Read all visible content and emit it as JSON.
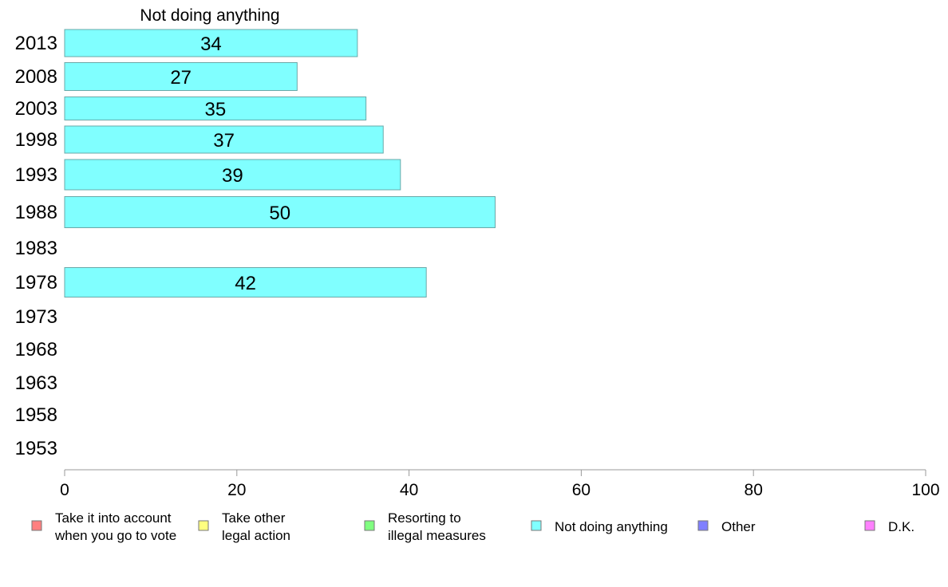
{
  "chart_data": {
    "type": "bar",
    "orientation": "horizontal",
    "panel_title": "Not doing anything",
    "categories": [
      "2013",
      "2008",
      "2003",
      "1998",
      "1993",
      "1988",
      "1983",
      "1978",
      "1973",
      "1968",
      "1963",
      "1958",
      "1953"
    ],
    "values": [
      34,
      27,
      35,
      37,
      39,
      50,
      null,
      42,
      null,
      null,
      null,
      null,
      null
    ],
    "value_labels": [
      "34",
      "27",
      "35",
      "37",
      "39",
      "50",
      "",
      "42",
      "",
      "",
      "",
      "",
      ""
    ],
    "xlim": [
      0,
      100
    ],
    "x_ticks": [
      "0",
      "20",
      "40",
      "60",
      "80",
      "100"
    ],
    "bar_color": "#80ffff",
    "bar_border_color": "#6aa8a8",
    "axis_color": "#999999",
    "grid": false,
    "legend_position": "bottom",
    "legend": [
      {
        "lines": [
          "Take it into account",
          "when you go to vote"
        ],
        "color": "#ff8080"
      },
      {
        "lines": [
          "Take other",
          "legal action"
        ],
        "color": "#ffff80"
      },
      {
        "lines": [
          "Resorting to",
          "illegal measures"
        ],
        "color": "#80ff80"
      },
      {
        "lines": [
          "Not doing anything"
        ],
        "color": "#80ffff"
      },
      {
        "lines": [
          "Other"
        ],
        "color": "#8080ff"
      },
      {
        "lines": [
          "D.K."
        ],
        "color": "#ff80ff"
      }
    ]
  }
}
